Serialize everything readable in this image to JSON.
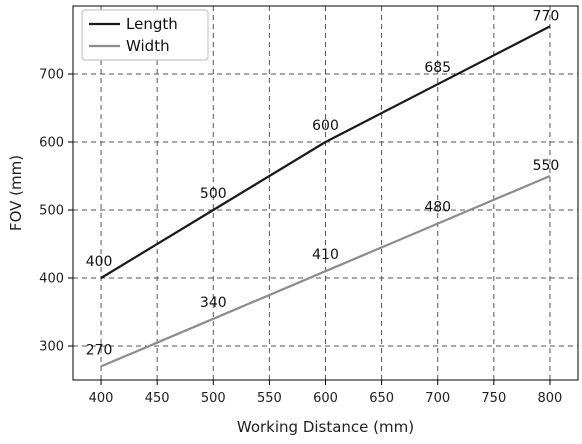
{
  "chart_data": {
    "type": "line",
    "xlabel": "Working Distance (mm)",
    "ylabel": "FOV (mm)",
    "xlim": [
      375,
      825
    ],
    "ylim": [
      250,
      800
    ],
    "x_ticks": [
      400,
      450,
      500,
      550,
      600,
      650,
      700,
      750,
      800
    ],
    "y_ticks": [
      300,
      400,
      500,
      600,
      700
    ],
    "grid": true,
    "grid_style": "dashed",
    "legend_position": "top-left",
    "series": [
      {
        "name": "Length",
        "color": "#1a1a1a",
        "x": [
          400,
          500,
          600,
          700,
          800
        ],
        "y": [
          400,
          500,
          600,
          685,
          770
        ],
        "labels": [
          "400",
          "500",
          "600",
          "685",
          "770"
        ]
      },
      {
        "name": "Width",
        "color": "#8c8c8c",
        "x": [
          400,
          500,
          600,
          700,
          800
        ],
        "y": [
          270,
          340,
          410,
          480,
          550
        ],
        "labels": [
          "270",
          "340",
          "410",
          "480",
          "550"
        ]
      }
    ]
  }
}
